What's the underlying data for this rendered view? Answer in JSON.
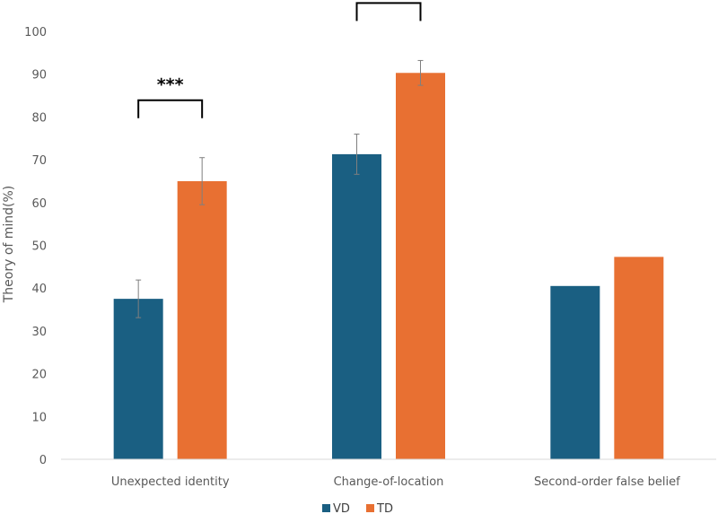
{
  "chart_data": {
    "type": "bar",
    "categories": [
      "Unexpected identity",
      "Change-of-location",
      "Second-order false belief"
    ],
    "series": [
      {
        "name": "VD",
        "color": "#1a5f82",
        "values": [
          37.5,
          71.3,
          40.5
        ],
        "error": [
          4.4,
          4.7,
          null
        ]
      },
      {
        "name": "TD",
        "color": "#e87032",
        "values": [
          65.0,
          90.3,
          47.3
        ],
        "error": [
          5.5,
          2.9,
          null
        ]
      }
    ],
    "ylabel": "Theory of mind(%)",
    "ylim": [
      0,
      100
    ],
    "yticks": [
      0,
      10,
      20,
      30,
      40,
      50,
      60,
      70,
      80,
      90,
      100
    ],
    "grid": false,
    "legend_position": "bottom",
    "significance": [
      {
        "category_index": 0,
        "label": "***"
      },
      {
        "category_index": 1,
        "label": "**"
      }
    ]
  }
}
